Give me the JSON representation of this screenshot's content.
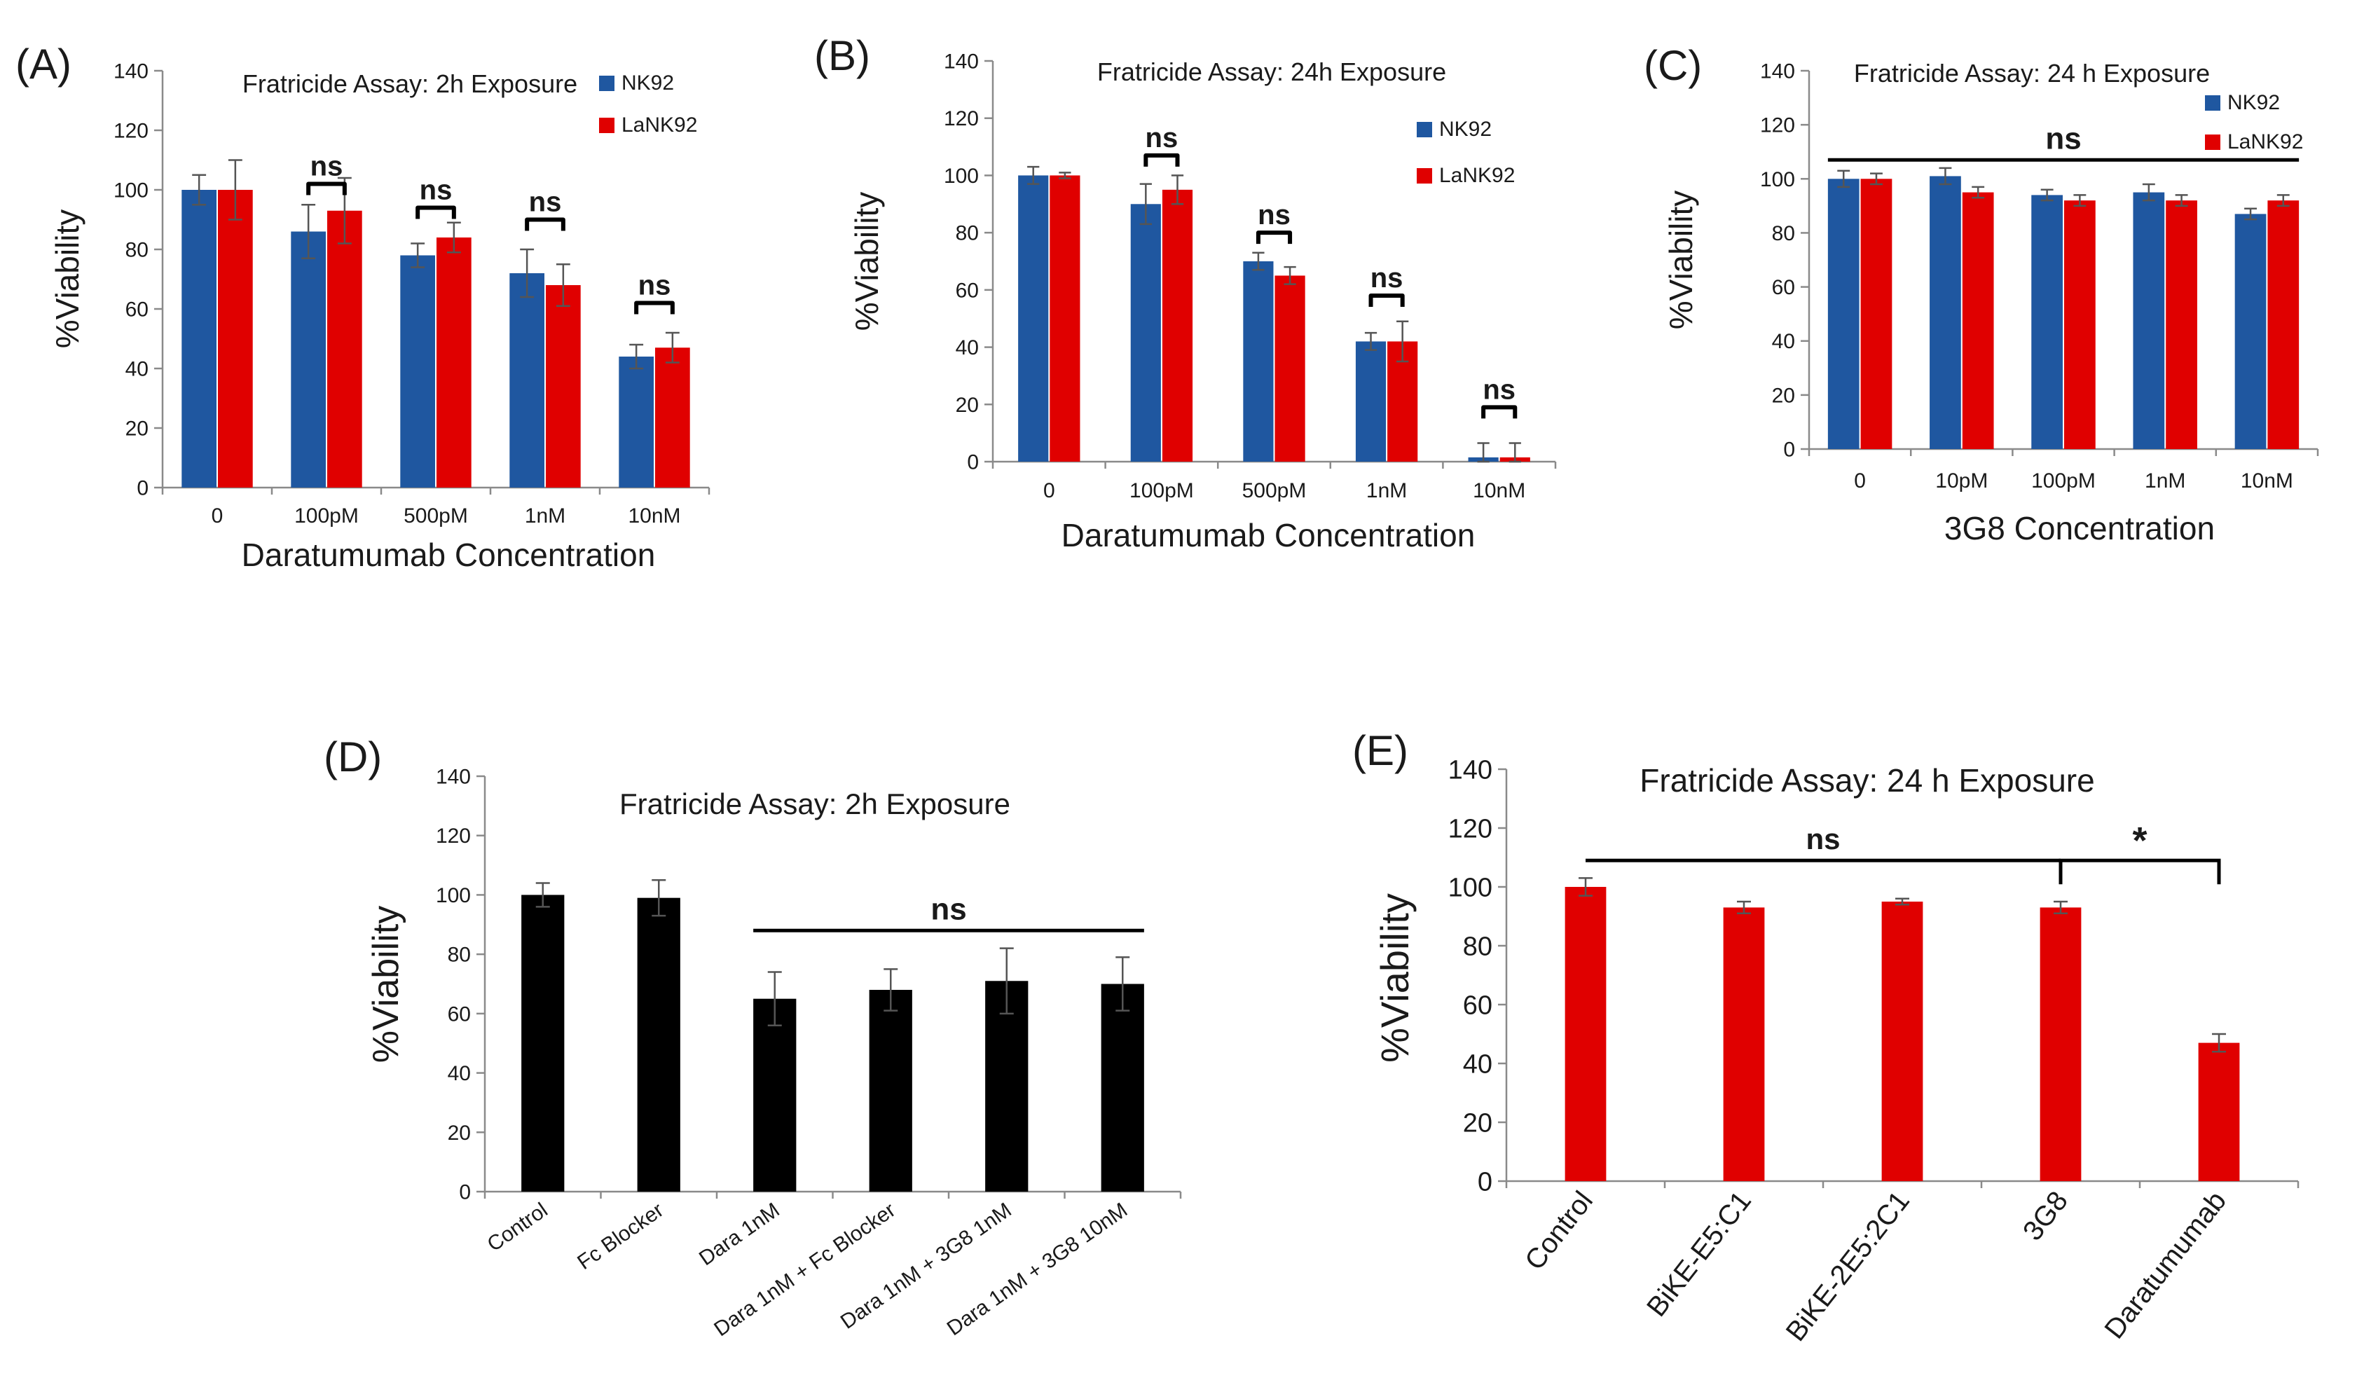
{
  "colors": {
    "nk92": "#1f57a0",
    "lank92": "#e00000",
    "black": "#000000",
    "red": "#e00000"
  },
  "chart_data": [
    {
      "panel": "(A)",
      "type": "bar",
      "title": "Fratricide Assay: 2h Exposure",
      "xlabel": "Daratumumab Concentration",
      "ylabel": "%Viability",
      "ylim": [
        0,
        140
      ],
      "yticks": [
        0,
        20,
        40,
        60,
        80,
        100,
        120,
        140
      ],
      "categories": [
        "0",
        "100pM",
        "500pM",
        "1nM",
        "10nM"
      ],
      "series": [
        {
          "name": "NK92",
          "color": "#1f57a0",
          "values": [
            100,
            86,
            78,
            72,
            44
          ],
          "errors": [
            5,
            9,
            4,
            8,
            4
          ]
        },
        {
          "name": "LaNK92",
          "color": "#e00000",
          "values": [
            100,
            93,
            84,
            68,
            47
          ],
          "errors": [
            10,
            11,
            5,
            7,
            5
          ]
        }
      ],
      "legend": [
        "NK92",
        "LaNK92"
      ],
      "annotations": [
        {
          "text": "ns",
          "index": 1,
          "y": 102
        },
        {
          "text": "ns",
          "index": 2,
          "y": 94
        },
        {
          "text": "ns",
          "index": 3,
          "y": 90
        },
        {
          "text": "ns",
          "index": 4,
          "y": 62
        }
      ]
    },
    {
      "panel": "(B)",
      "type": "bar",
      "title": "Fratricide Assay: 24h Exposure",
      "xlabel": "Daratumumab Concentration",
      "ylabel": "%Viability",
      "ylim": [
        0,
        140
      ],
      "yticks": [
        0,
        20,
        40,
        60,
        80,
        100,
        120,
        140
      ],
      "categories": [
        "0",
        "100pM",
        "500pM",
        "1nM",
        "10nM"
      ],
      "series": [
        {
          "name": "NK92",
          "color": "#1f57a0",
          "values": [
            100,
            90,
            70,
            42,
            1.5
          ],
          "errors": [
            3,
            7,
            3,
            3,
            5
          ]
        },
        {
          "name": "LaNK92",
          "color": "#e00000",
          "values": [
            100,
            95,
            65,
            42,
            1.5
          ],
          "errors": [
            1,
            5,
            3,
            7,
            5
          ]
        }
      ],
      "legend": [
        "NK92",
        "LaNK92"
      ],
      "annotations": [
        {
          "text": "ns",
          "index": 1,
          "y": 107
        },
        {
          "text": "ns",
          "index": 2,
          "y": 80
        },
        {
          "text": "ns",
          "index": 3,
          "y": 58
        },
        {
          "text": "ns",
          "index": 4,
          "y": 19
        }
      ]
    },
    {
      "panel": "(C)",
      "type": "bar",
      "title": "Fratricide Assay: 24 h Exposure",
      "xlabel": "3G8 Concentration",
      "ylabel": "%Viability",
      "ylim": [
        0,
        140
      ],
      "yticks": [
        0,
        20,
        40,
        60,
        80,
        100,
        120,
        140
      ],
      "categories": [
        "0",
        "10pM",
        "100pM",
        "1nM",
        "10nM"
      ],
      "series": [
        {
          "name": "NK92",
          "color": "#1f57a0",
          "values": [
            100,
            101,
            94,
            95,
            87
          ],
          "errors": [
            3,
            3,
            2,
            3,
            2
          ]
        },
        {
          "name": "LaNK92",
          "color": "#e00000",
          "values": [
            100,
            95,
            92,
            92,
            92
          ],
          "errors": [
            2,
            2,
            2,
            2,
            2
          ]
        }
      ],
      "legend": [
        "NK92",
        "LaNK92"
      ],
      "bracket": {
        "text": "ns",
        "from": 0,
        "to": 4,
        "y": 107
      }
    },
    {
      "panel": "(D)",
      "type": "bar",
      "title": "Fratricide Assay: 2h Exposure",
      "xlabel": "",
      "ylabel": "%Viability",
      "ylim": [
        0,
        140
      ],
      "yticks": [
        0,
        20,
        40,
        60,
        80,
        100,
        120,
        140
      ],
      "categories": [
        "Control",
        "Fc Blocker",
        "Dara 1nM",
        "Dara 1nM + Fc Blocker",
        "Dara 1nM + 3G8 1nM",
        "Dara 1nM + 3G8 10nM"
      ],
      "series": [
        {
          "name": "Viability",
          "color": "#000000",
          "values": [
            100,
            99,
            65,
            68,
            71,
            70
          ],
          "errors": [
            4,
            6,
            9,
            7,
            11,
            9
          ]
        }
      ],
      "bracket": {
        "text": "ns",
        "from": 2,
        "to": 5,
        "y": 88
      }
    },
    {
      "panel": "(E)",
      "type": "bar",
      "title": "Fratricide Assay: 24 h Exposure",
      "xlabel": "",
      "ylabel": "%Viability",
      "ylim": [
        0,
        140
      ],
      "yticks": [
        0,
        20,
        40,
        60,
        80,
        100,
        120,
        140
      ],
      "categories": [
        "Control",
        "BiKE-E5:C1",
        "BiKE-2E5:2C1",
        "3G8",
        "Daratumumab"
      ],
      "series": [
        {
          "name": "Viability",
          "color": "#e00000",
          "values": [
            100,
            93,
            95,
            93,
            47
          ],
          "errors": [
            3,
            2,
            1,
            2,
            3
          ]
        }
      ],
      "bracket": {
        "text": "ns",
        "from": 0,
        "to": 3,
        "y": 109
      },
      "sig": {
        "text": "*",
        "from": 3,
        "to": 4,
        "y": 109
      }
    }
  ]
}
